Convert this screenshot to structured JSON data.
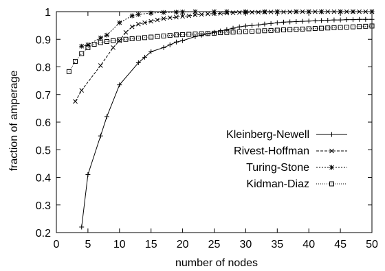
{
  "chart_data": {
    "type": "line",
    "xlabel": "number of nodes",
    "ylabel": "fraction of amperage",
    "xlim": [
      0,
      50
    ],
    "ylim": [
      0.2,
      1.0
    ],
    "xticks": [
      "0",
      "5",
      "10",
      "15",
      "20",
      "25",
      "30",
      "35",
      "40",
      "45",
      "50"
    ],
    "yticks": [
      "0.2",
      "0.3",
      "0.4",
      "0.5",
      "0.6",
      "0.7",
      "0.8",
      "0.9",
      "1"
    ],
    "grid": false,
    "legend_position": "center-right",
    "series": [
      {
        "name": "Kleinberg-Newell",
        "marker": "plus",
        "dash": "solid",
        "x": [
          4,
          5,
          7,
          8,
          10,
          13,
          14,
          15,
          17,
          18,
          19,
          20,
          22,
          23,
          24,
          25,
          26,
          27,
          28,
          29,
          30,
          31,
          32,
          33,
          34,
          35,
          36,
          37,
          38,
          39,
          40,
          41,
          42,
          43,
          44,
          45,
          46,
          47,
          48,
          49,
          50
        ],
        "values": [
          0.22,
          0.41,
          0.55,
          0.62,
          0.735,
          0.815,
          0.835,
          0.855,
          0.87,
          0.88,
          0.89,
          0.895,
          0.91,
          0.915,
          0.92,
          0.925,
          0.93,
          0.935,
          0.94,
          0.945,
          0.948,
          0.95,
          0.952,
          0.955,
          0.957,
          0.96,
          0.962,
          0.963,
          0.964,
          0.965,
          0.966,
          0.967,
          0.968,
          0.969,
          0.97,
          0.97,
          0.971,
          0.971,
          0.972,
          0.972,
          0.972
        ]
      },
      {
        "name": "Rivest-Hoffman",
        "marker": "cross",
        "dash": "dashed",
        "x": [
          3,
          4,
          7,
          9,
          10,
          11,
          12,
          13,
          14,
          15,
          16,
          17,
          18,
          19,
          20,
          21,
          22,
          23,
          24,
          25,
          26,
          27,
          28,
          29,
          30,
          31,
          32,
          33,
          34,
          35,
          36,
          37,
          38,
          39,
          40,
          41,
          42,
          43,
          44,
          45,
          46,
          47,
          48,
          49,
          50
        ],
        "values": [
          0.675,
          0.715,
          0.805,
          0.87,
          0.895,
          0.925,
          0.945,
          0.955,
          0.96,
          0.965,
          0.97,
          0.975,
          0.978,
          0.98,
          0.983,
          0.985,
          0.988,
          0.99,
          0.992,
          0.993,
          0.994,
          0.995,
          0.996,
          0.997,
          0.997,
          0.998,
          0.998,
          0.998,
          0.999,
          0.999,
          0.999,
          0.999,
          1.0,
          1.0,
          1.0,
          1.0,
          1.0,
          1.0,
          1.0,
          1.0,
          1.0,
          1.0,
          1.0,
          1.0,
          1.0
        ]
      },
      {
        "name": "Turing-Stone",
        "marker": "star",
        "dash": "dotted",
        "x": [
          4,
          5,
          7,
          8,
          10,
          12,
          13,
          15,
          17,
          19,
          20,
          22,
          25,
          27,
          30,
          33,
          35,
          38,
          40,
          42,
          45,
          47,
          50
        ],
        "values": [
          0.875,
          0.88,
          0.905,
          0.915,
          0.96,
          0.985,
          0.99,
          0.995,
          0.997,
          0.998,
          0.999,
          1.0,
          1.0,
          1.0,
          1.0,
          1.0,
          1.0,
          1.0,
          1.0,
          1.0,
          1.0,
          1.0,
          1.0
        ]
      },
      {
        "name": "Kidman-Diaz",
        "marker": "box",
        "dash": "dotted-fine",
        "x": [
          2,
          3,
          4,
          5,
          6,
          7,
          8,
          9,
          10,
          11,
          12,
          13,
          14,
          15,
          16,
          17,
          18,
          19,
          20,
          21,
          22,
          23,
          24,
          25,
          26,
          27,
          28,
          29,
          30,
          31,
          32,
          33,
          34,
          35,
          36,
          37,
          38,
          39,
          40,
          41,
          42,
          43,
          44,
          45,
          46,
          47,
          48,
          49,
          50
        ],
        "values": [
          0.783,
          0.82,
          0.848,
          0.87,
          0.882,
          0.888,
          0.892,
          0.895,
          0.898,
          0.9,
          0.902,
          0.904,
          0.906,
          0.908,
          0.91,
          0.912,
          0.914,
          0.916,
          0.917,
          0.918,
          0.919,
          0.92,
          0.921,
          0.922,
          0.924,
          0.925,
          0.926,
          0.927,
          0.928,
          0.929,
          0.93,
          0.931,
          0.932,
          0.933,
          0.934,
          0.935,
          0.936,
          0.937,
          0.938,
          0.939,
          0.94,
          0.941,
          0.942,
          0.943,
          0.944,
          0.945,
          0.946,
          0.947,
          0.948
        ]
      }
    ]
  }
}
